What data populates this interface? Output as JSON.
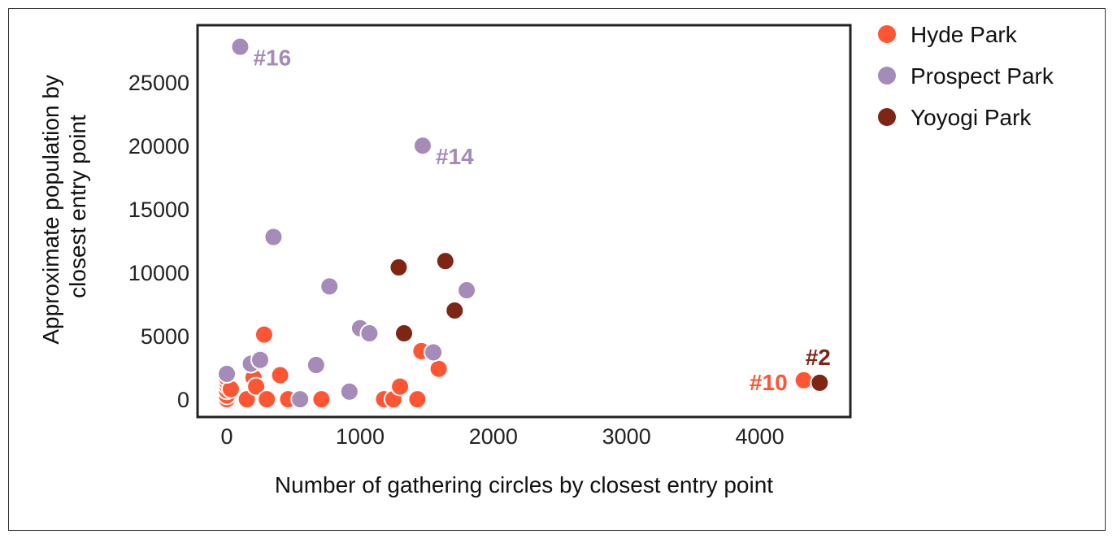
{
  "chart_data": {
    "type": "scatter",
    "title": "",
    "xlabel": "Number of gathering circles by closest entry point",
    "ylabel_lines": [
      "Approximate population by",
      "closest entry point"
    ],
    "xlim": [
      -220,
      4680
    ],
    "ylim": [
      -1400,
      29500
    ],
    "x_ticks": [
      0,
      1000,
      2000,
      3000,
      4000
    ],
    "y_ticks": [
      0,
      5000,
      10000,
      15000,
      20000,
      25000
    ],
    "grid": false,
    "legend_position": "outside-right",
    "series": [
      {
        "name": "Hyde Park",
        "color": "#FF5533",
        "points": [
          [
            0,
            0
          ],
          [
            0,
            300
          ],
          [
            0,
            700
          ],
          [
            0,
            1100
          ],
          [
            0,
            1400
          ],
          [
            0,
            1700
          ],
          [
            30,
            800
          ],
          [
            150,
            0
          ],
          [
            200,
            1700
          ],
          [
            220,
            1000
          ],
          [
            280,
            5100
          ],
          [
            300,
            0
          ],
          [
            400,
            1900
          ],
          [
            460,
            0
          ],
          [
            710,
            0
          ],
          [
            1180,
            0
          ],
          [
            1250,
            0
          ],
          [
            1300,
            1000
          ],
          [
            1430,
            0
          ],
          [
            1460,
            3800
          ],
          [
            1590,
            2400
          ],
          [
            4330,
            1500
          ]
        ]
      },
      {
        "name": "Prospect Park",
        "color": "#A48BB8",
        "points": [
          [
            0,
            2000
          ],
          [
            100,
            27800
          ],
          [
            180,
            2800
          ],
          [
            250,
            3100
          ],
          [
            350,
            12800
          ],
          [
            550,
            0
          ],
          [
            670,
            2700
          ],
          [
            770,
            8900
          ],
          [
            920,
            600
          ],
          [
            1000,
            5600
          ],
          [
            1070,
            5200
          ],
          [
            1470,
            20000
          ],
          [
            1550,
            3700
          ],
          [
            1800,
            8600
          ]
        ]
      },
      {
        "name": "Yoyogi Park",
        "color": "#7F2514",
        "points": [
          [
            1290,
            10400
          ],
          [
            1330,
            5200
          ],
          [
            1640,
            10900
          ],
          [
            1710,
            7000
          ],
          [
            4450,
            1300
          ]
        ]
      }
    ],
    "annotations": [
      {
        "text": "#16",
        "x": 100,
        "y": 27800,
        "color": "#A48BB8",
        "align": "left"
      },
      {
        "text": "#14",
        "x": 1470,
        "y": 20000,
        "color": "#A48BB8",
        "align": "left"
      },
      {
        "text": "#10",
        "x": 4330,
        "y": 1500,
        "color": "#FF5533",
        "align": "right"
      },
      {
        "text": "#2",
        "x": 4450,
        "y": 1300,
        "color": "#7F2514",
        "align": "above"
      }
    ]
  }
}
